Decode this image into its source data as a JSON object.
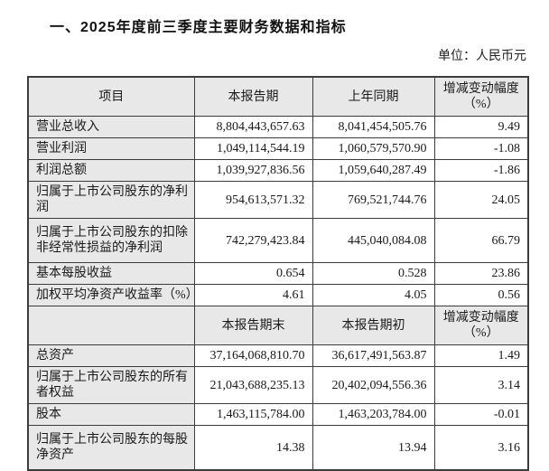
{
  "page": {
    "title": "一、2025年度前三季度主要财务数据和指标",
    "unit_label": "单位：人民币元"
  },
  "colors": {
    "header_cell_bg": "#e8e8e8",
    "table_border": "#3c3c3c",
    "text": "#1a1a1a"
  },
  "table": {
    "section1": {
      "headers": [
        "项目",
        "本报告期",
        "上年同期",
        "增减变动幅度（%）"
      ],
      "rows": [
        {
          "label": "营业总收入",
          "current": "8,804,443,657.63",
          "prior": "8,041,454,505.76",
          "change": "9.49"
        },
        {
          "label": "营业利润",
          "current": "1,049,114,544.19",
          "prior": "1,060,579,570.90",
          "change": "-1.08"
        },
        {
          "label": "利润总额",
          "current": "1,039,927,836.56",
          "prior": "1,059,640,287.49",
          "change": "-1.86"
        },
        {
          "label": "归属于上市公司股东的净利润",
          "current": "954,613,571.32",
          "prior": "769,521,744.76",
          "change": "24.05"
        },
        {
          "label": "归属于上市公司股东的扣除非经常性损益的净利润",
          "current": "742,279,423.84",
          "prior": "445,040,084.08",
          "change": "66.79"
        },
        {
          "label": "基本每股收益",
          "current": "0.654",
          "prior": "0.528",
          "change": "23.86"
        },
        {
          "label": "加权平均净资产收益率（%）",
          "current": "4.61",
          "prior": "4.05",
          "change": "0.56"
        }
      ]
    },
    "section2": {
      "headers": [
        "",
        "本报告期末",
        "本报告期初",
        "增减变动幅度（%）"
      ],
      "rows": [
        {
          "label": "总资产",
          "current": "37,164,068,810.70",
          "prior": "36,617,491,563.87",
          "change": "1.49"
        },
        {
          "label": "归属于上市公司股东的所有者权益",
          "current": "21,043,688,235.13",
          "prior": "20,402,094,556.36",
          "change": "3.14"
        },
        {
          "label": "股本",
          "current": "1,463,115,784.00",
          "prior": "1,463,203,784.00",
          "change": "-0.01"
        },
        {
          "label": "归属于上市公司股东的每股净资产",
          "current": "14.38",
          "prior": "13.94",
          "change": "3.16"
        }
      ]
    }
  }
}
